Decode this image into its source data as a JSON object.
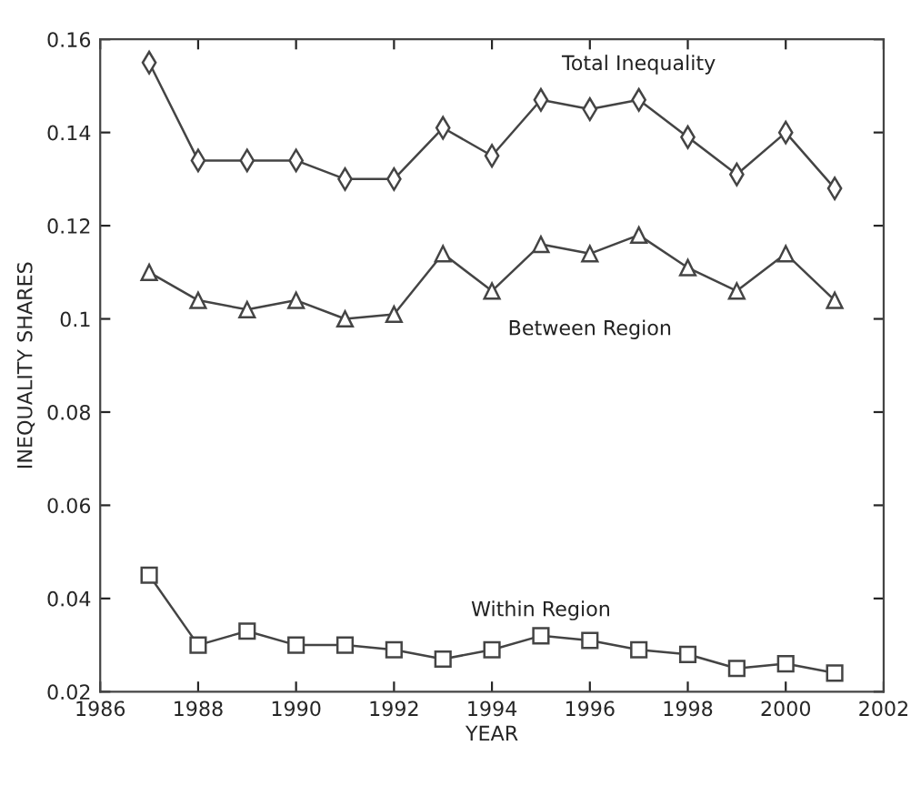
{
  "chart_data": {
    "type": "line",
    "xlabel": "YEAR",
    "ylabel": "INEQUALITY SHARES",
    "x": [
      1987,
      1988,
      1989,
      1990,
      1991,
      1992,
      1993,
      1994,
      1995,
      1996,
      1997,
      1998,
      1999,
      2000,
      2001
    ],
    "series": [
      {
        "name": "Total Inequality",
        "color": "#444444",
        "marker": "diamond",
        "values": [
          0.155,
          0.134,
          0.134,
          0.134,
          0.13,
          0.13,
          0.141,
          0.135,
          0.147,
          0.145,
          0.147,
          0.139,
          0.131,
          0.14,
          0.128
        ]
      },
      {
        "name": "Between Region",
        "color": "#444444",
        "marker": "triangle",
        "values": [
          0.11,
          0.104,
          0.102,
          0.104,
          0.1,
          0.101,
          0.114,
          0.106,
          0.116,
          0.114,
          0.118,
          0.111,
          0.106,
          0.114,
          0.104
        ]
      },
      {
        "name": "Within Region",
        "color": "#444444",
        "marker": "square",
        "values": [
          0.045,
          0.03,
          0.033,
          0.03,
          0.03,
          0.029,
          0.027,
          0.029,
          0.032,
          0.031,
          0.029,
          0.028,
          0.025,
          0.026,
          0.024
        ]
      }
    ],
    "xlim": [
      1986,
      2002
    ],
    "xticks": [
      1986,
      1988,
      1990,
      1992,
      1994,
      1996,
      1998,
      2000,
      2002
    ],
    "ylim": [
      0.02,
      0.16
    ],
    "yticks": [
      0.02,
      0.04,
      0.06,
      0.08,
      0.1,
      0.12,
      0.14,
      0.16
    ],
    "grid": false,
    "legend": false,
    "line_style": "solid"
  }
}
